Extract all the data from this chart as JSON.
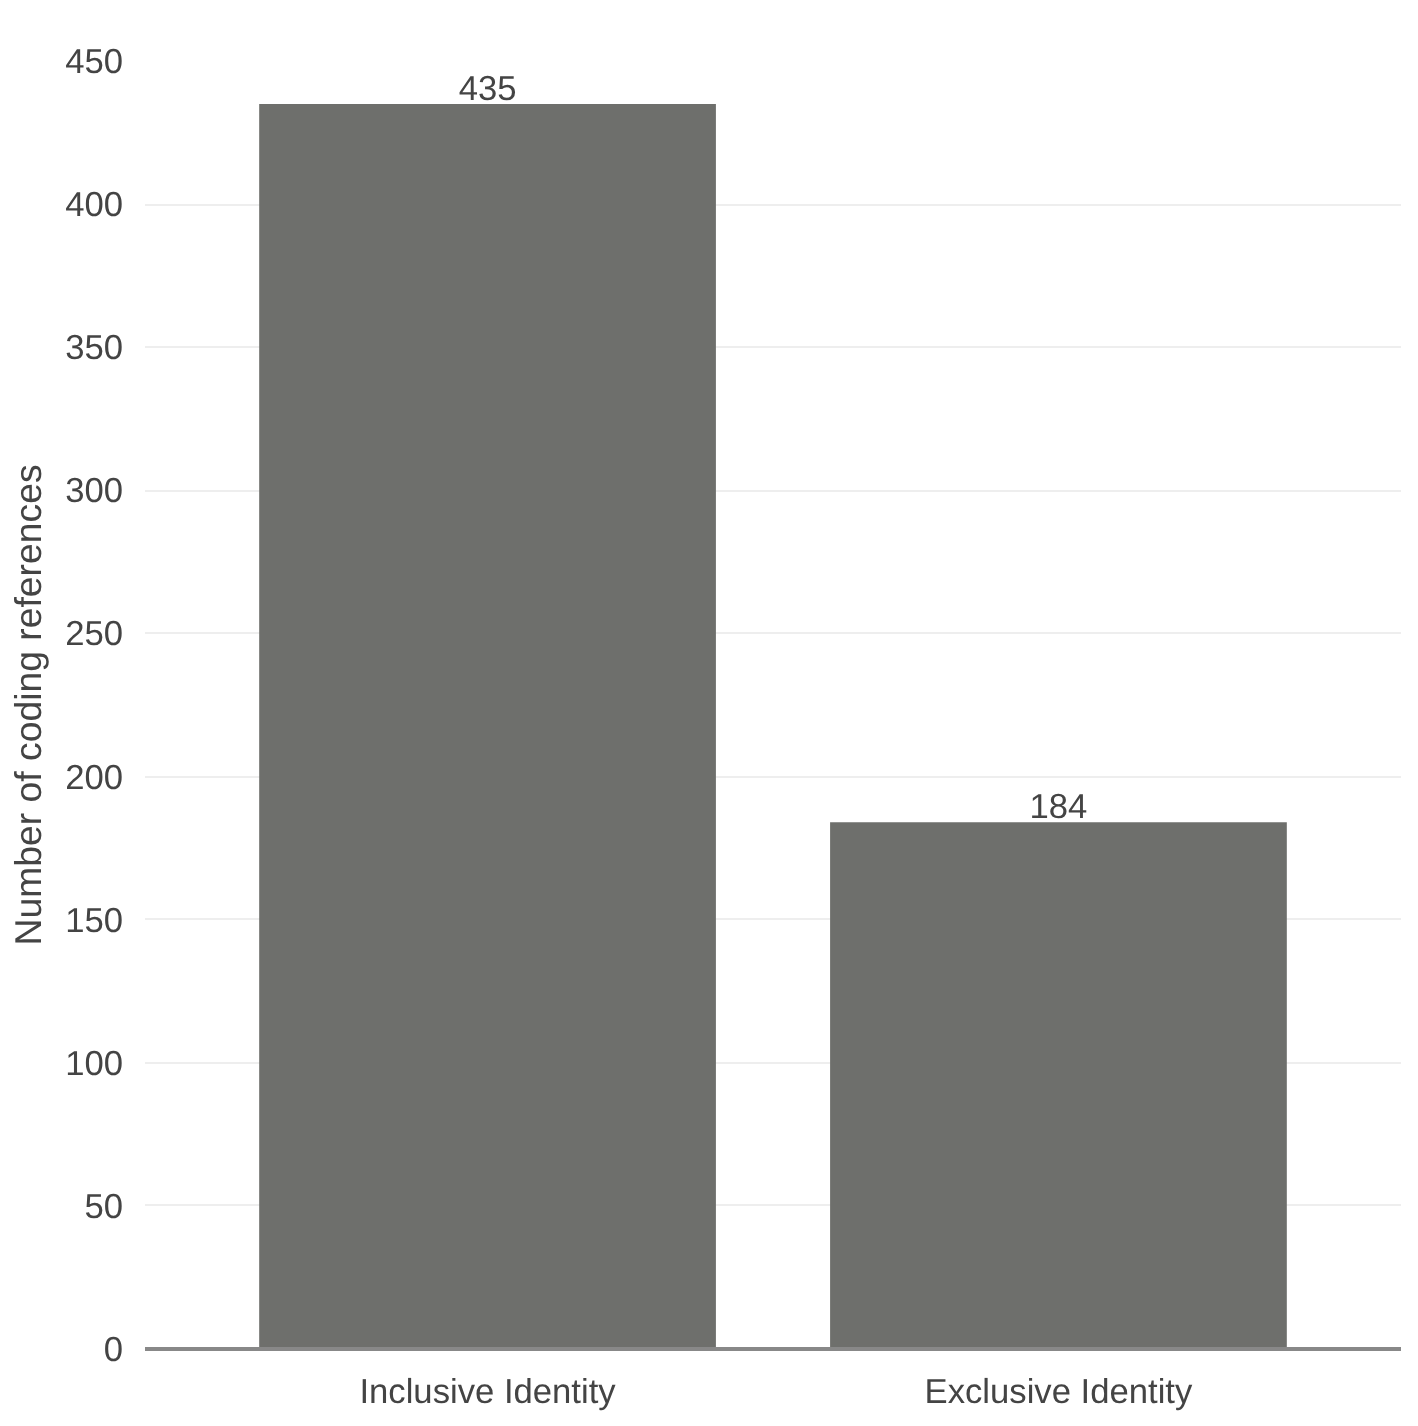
{
  "chart_data": {
    "type": "bar",
    "ylabel": "Number of coding references",
    "categories": [
      "Inclusive Identity",
      "Exclusive Identity"
    ],
    "values": [
      435,
      184
    ],
    "color": "#6e6f6c",
    "ylim": [
      0,
      450
    ],
    "yticks": [
      0,
      50,
      100,
      150,
      200,
      250,
      300,
      350,
      400,
      450
    ],
    "grid": "y",
    "data_labels": true
  }
}
